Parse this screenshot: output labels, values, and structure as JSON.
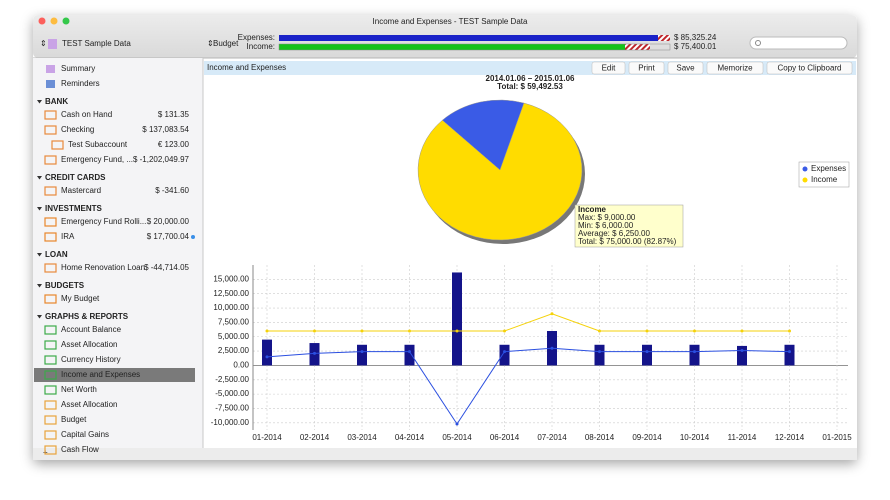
{
  "window": {
    "title": "Income and Expenses - TEST Sample Data"
  },
  "toolbar": {
    "file": "TEST Sample Data",
    "budget": "Budget",
    "expenses_label": "Expenses:",
    "expenses_total": "$ 85,325.24",
    "income_label": "Income:",
    "income_total": "$ 75,400.01"
  },
  "sidebar": {
    "top": [
      {
        "label": "Summary"
      },
      {
        "label": "Reminders"
      }
    ],
    "sections": [
      {
        "title": "BANK",
        "items": [
          {
            "label": "Cash on Hand",
            "amount": "$ 131.35"
          },
          {
            "label": "Checking",
            "amount": "$ 137,083.54"
          },
          {
            "label": "Test Subaccount",
            "amount": "€ 123.00",
            "sub": true
          },
          {
            "label": "Emergency Fund, ...",
            "amount": "$ -1,202,049.97"
          }
        ]
      },
      {
        "title": "CREDIT CARDS",
        "items": [
          {
            "label": "Mastercard",
            "amount": "$ -341.60"
          }
        ]
      },
      {
        "title": "INVESTMENTS",
        "items": [
          {
            "label": "Emergency Fund Rolli...",
            "amount": "$ 20,000.00"
          },
          {
            "label": "IRA",
            "amount": "$ 17,700.04"
          }
        ]
      },
      {
        "title": "LOAN",
        "items": [
          {
            "label": "Home Renovation Loan",
            "amount": "$ -44,714.05"
          }
        ]
      },
      {
        "title": "BUDGETS",
        "items": [
          {
            "label": "My Budget"
          }
        ]
      },
      {
        "title": "GRAPHS & REPORTS",
        "items": [
          {
            "label": "Account Balance"
          },
          {
            "label": "Asset Allocation"
          },
          {
            "label": "Currency History"
          },
          {
            "label": "Income and Expenses",
            "selected": true
          },
          {
            "label": "Net Worth"
          },
          {
            "label": "Asset Allocation"
          },
          {
            "label": "Budget"
          },
          {
            "label": "Capital Gains"
          },
          {
            "label": "Cash Flow"
          }
        ]
      }
    ]
  },
  "report": {
    "title": "Income and Expenses",
    "buttons": [
      "Edit",
      "Print",
      "Save",
      "Memorize",
      "Copy to Clipboard"
    ],
    "pie": {
      "title": "2014.01.06 – 2015.01.06",
      "total": "Total: $ 59,492.53",
      "series": [
        {
          "name": "Expenses",
          "color": "#3a5be6",
          "value": 17.13
        },
        {
          "name": "Income",
          "color": "#ffdc00",
          "value": 82.87
        }
      ],
      "tooltip": [
        "Income",
        "Max: $ 9,000.00",
        "Min: $ 6,000.00",
        "Average: $ 6,250.00",
        "Total: $ 75,000.00 (82.87%)"
      ]
    },
    "chart": {
      "type": "bar",
      "categories": [
        "01-2014",
        "02-2014",
        "03-2014",
        "04-2014",
        "05-2014",
        "06-2014",
        "07-2014",
        "08-2014",
        "09-2014",
        "10-2014",
        "11-2014",
        "12-2014",
        "01-2015"
      ],
      "series": [
        {
          "kind": "bar",
          "color": "#14148a",
          "values": [
            4500,
            3900,
            3600,
            3600,
            16200,
            3600,
            6000,
            3600,
            3600,
            3600,
            3400,
            3600,
            null
          ]
        },
        {
          "kind": "line",
          "color": "#f5d20a",
          "values": [
            6000,
            6000,
            6000,
            6000,
            6000,
            6000,
            9000,
            6000,
            6000,
            6000,
            6000,
            6000,
            null
          ]
        },
        {
          "kind": "line",
          "color": "#2b4fe0",
          "values": [
            1500,
            2100,
            2400,
            2400,
            -10200,
            2400,
            3000,
            2400,
            2400,
            2400,
            2600,
            2400,
            null
          ]
        }
      ],
      "ylim": [
        -11250,
        17500
      ],
      "yticks": [
        {
          "value": -10000,
          "label": "-10,000.00"
        },
        {
          "value": -7500,
          "label": "-7,500.00"
        },
        {
          "value": -5000,
          "label": "-5,000.00"
        },
        {
          "value": -2500,
          "label": "-2,500.00"
        },
        {
          "value": 0,
          "label": "0.00"
        },
        {
          "value": 2500,
          "label": "2,500.00"
        },
        {
          "value": 5000,
          "label": "5,000.00"
        },
        {
          "value": 7500,
          "label": "7,500.00"
        },
        {
          "value": 10000,
          "label": "10,000.00"
        },
        {
          "value": 12500,
          "label": "12,500.00"
        },
        {
          "value": 15000,
          "label": "15,000.00"
        }
      ],
      "grid": true
    }
  }
}
